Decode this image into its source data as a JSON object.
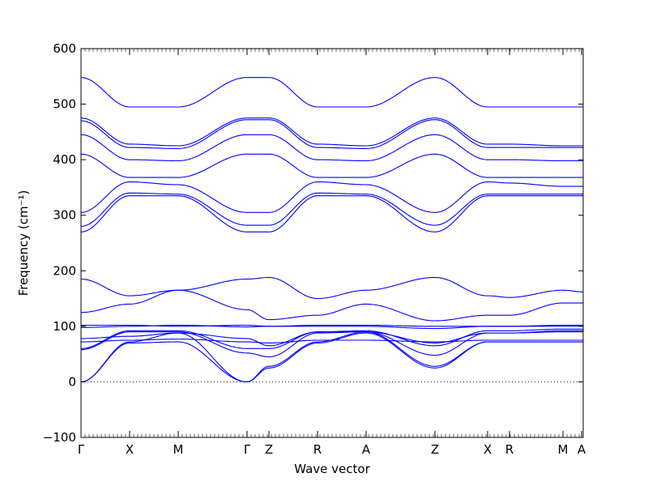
{
  "chart_data": {
    "type": "line",
    "title": "",
    "xlabel": "Wave vector",
    "ylabel": "Frequency (cm⁻¹)",
    "ylim": [
      -100,
      600
    ],
    "xlim": [
      0,
      620
    ],
    "yticks": [
      -100,
      0,
      100,
      200,
      300,
      400,
      500,
      600
    ],
    "grid": false,
    "legend": "none",
    "line_color": "#0000ff",
    "zero_line": {
      "y": 0,
      "style": "dotted",
      "color": "#000000"
    },
    "kpoints": [
      {
        "label": "Γ",
        "x": 0
      },
      {
        "label": "X",
        "x": 60
      },
      {
        "label": "M",
        "x": 120
      },
      {
        "label": "Γ",
        "x": 205
      },
      {
        "label": "Z",
        "x": 232
      },
      {
        "label": "R",
        "x": 292
      },
      {
        "label": "A",
        "x": 352
      },
      {
        "label": "Z",
        "x": 437
      },
      {
        "label": "X",
        "x": 502
      },
      {
        "label": "R",
        "x": 529
      },
      {
        "label": "M",
        "x": 595
      },
      {
        "label": "A",
        "x": 618
      }
    ],
    "series": [
      {
        "x": [
          0,
          60,
          120,
          205,
          232,
          292,
          352,
          437,
          502,
          529,
          595,
          620
        ],
        "values": [
          0,
          70,
          72,
          0,
          25,
          70,
          88,
          25,
          72,
          72,
          72,
          72
        ]
      },
      {
        "x": [
          0,
          60,
          120,
          205,
          232,
          292,
          352,
          437,
          502,
          529,
          595,
          620
        ],
        "values": [
          0,
          72,
          88,
          0,
          28,
          72,
          90,
          28,
          72,
          72,
          72,
          72
        ]
      },
      {
        "x": [
          0,
          60,
          120,
          205,
          232,
          292,
          352,
          437,
          502,
          529,
          595,
          620
        ],
        "values": [
          58,
          90,
          90,
          52,
          45,
          88,
          90,
          48,
          88,
          88,
          92,
          92
        ]
      },
      {
        "x": [
          0,
          60,
          120,
          205,
          232,
          292,
          352,
          437,
          502,
          529,
          595,
          620
        ],
        "values": [
          60,
          92,
          92,
          60,
          60,
          90,
          92,
          65,
          92,
          92,
          95,
          95
        ]
      },
      {
        "x": [
          0,
          60,
          120,
          205,
          232,
          292,
          352,
          437,
          502,
          529,
          595,
          620
        ],
        "values": [
          72,
          75,
          77,
          72,
          70,
          75,
          75,
          72,
          75,
          75,
          75,
          75
        ]
      },
      {
        "x": [
          0,
          60,
          120,
          205,
          232,
          292,
          352,
          437,
          502,
          529,
          595,
          620
        ],
        "values": [
          78,
          82,
          88,
          78,
          65,
          90,
          90,
          70,
          88,
          88,
          90,
          90
        ]
      },
      {
        "x": [
          0,
          60,
          120,
          205,
          232,
          292,
          352,
          437,
          502,
          529,
          595,
          620
        ],
        "values": [
          98,
          100,
          102,
          99,
          100,
          100,
          100,
          96,
          100,
          100,
          100,
          100
        ]
      },
      {
        "x": [
          0,
          60,
          120,
          205,
          232,
          292,
          352,
          437,
          502,
          529,
          595,
          620
        ],
        "values": [
          102,
          102,
          100,
          102,
          100,
          102,
          102,
          100,
          100,
          100,
          102,
          102
        ]
      },
      {
        "x": [
          0,
          60,
          120,
          205,
          232,
          292,
          352,
          437,
          502,
          529,
          595,
          620
        ],
        "values": [
          125,
          140,
          165,
          130,
          112,
          120,
          140,
          110,
          120,
          120,
          142,
          142
        ]
      },
      {
        "x": [
          0,
          60,
          120,
          205,
          232,
          292,
          352,
          437,
          502,
          529,
          595,
          620
        ],
        "values": [
          185,
          155,
          165,
          185,
          188,
          150,
          165,
          188,
          155,
          152,
          165,
          162
        ]
      },
      {
        "x": [
          0,
          60,
          120,
          205,
          232,
          292,
          352,
          437,
          502,
          529,
          595,
          620
        ],
        "values": [
          270,
          335,
          335,
          270,
          270,
          335,
          335,
          270,
          335,
          335,
          335,
          335
        ]
      },
      {
        "x": [
          0,
          60,
          120,
          205,
          232,
          292,
          352,
          437,
          502,
          529,
          595,
          620
        ],
        "values": [
          280,
          340,
          338,
          282,
          282,
          340,
          338,
          282,
          338,
          338,
          338,
          338
        ]
      },
      {
        "x": [
          0,
          60,
          120,
          205,
          232,
          292,
          352,
          437,
          502,
          529,
          595,
          620
        ],
        "values": [
          305,
          360,
          355,
          305,
          305,
          360,
          355,
          305,
          360,
          358,
          352,
          352
        ]
      },
      {
        "x": [
          0,
          60,
          120,
          205,
          232,
          292,
          352,
          437,
          502,
          529,
          595,
          620
        ],
        "values": [
          410,
          368,
          368,
          410,
          410,
          368,
          368,
          410,
          368,
          368,
          368,
          368
        ]
      },
      {
        "x": [
          0,
          60,
          120,
          205,
          232,
          292,
          352,
          437,
          502,
          529,
          595,
          620
        ],
        "values": [
          445,
          400,
          398,
          445,
          445,
          400,
          398,
          445,
          400,
          400,
          398,
          398
        ]
      },
      {
        "x": [
          0,
          60,
          120,
          205,
          232,
          292,
          352,
          437,
          502,
          529,
          595,
          620
        ],
        "values": [
          470,
          422,
          420,
          472,
          472,
          422,
          420,
          472,
          422,
          422,
          422,
          422
        ]
      },
      {
        "x": [
          0,
          60,
          120,
          205,
          232,
          292,
          352,
          437,
          502,
          529,
          595,
          620
        ],
        "values": [
          475,
          428,
          425,
          475,
          475,
          428,
          425,
          475,
          428,
          428,
          425,
          425
        ]
      },
      {
        "x": [
          0,
          60,
          120,
          205,
          232,
          292,
          352,
          437,
          502,
          529,
          595,
          620
        ],
        "values": [
          548,
          495,
          495,
          548,
          548,
          495,
          495,
          548,
          495,
          495,
          495,
          495
        ]
      }
    ]
  }
}
